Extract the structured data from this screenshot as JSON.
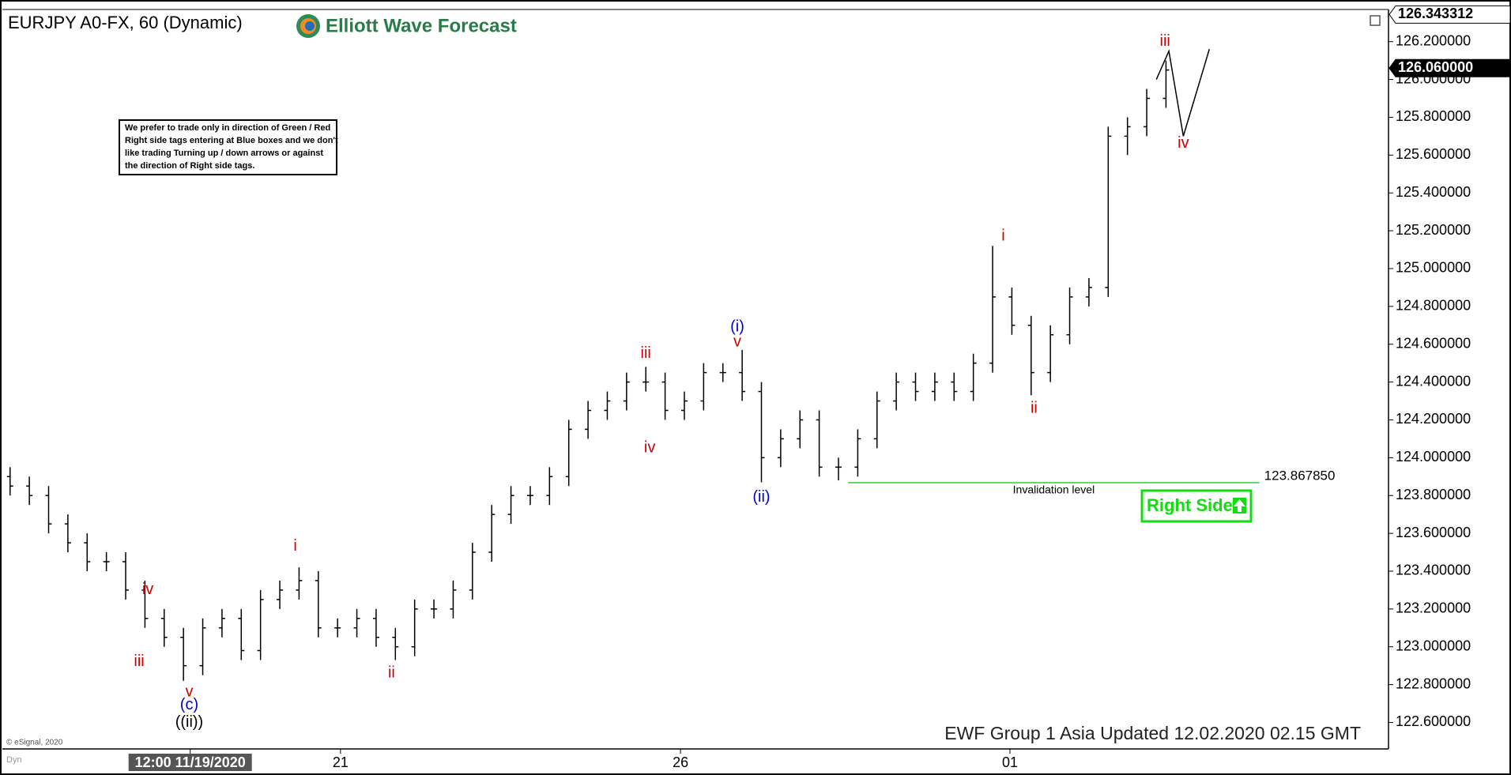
{
  "chart_data": {
    "type": "ohlc",
    "title": "EURJPY A0-FX, 60 (Dynamic)",
    "color": "#000000",
    "xlim": [
      -0.4,
      71.55
    ],
    "ylim": [
      122.46,
      126.37
    ],
    "xticks": [
      {
        "value": 9.35,
        "label": "12:00 11/19/2020"
      },
      {
        "value": 17.15,
        "label": "21"
      },
      {
        "value": 34.8,
        "label": "26"
      },
      {
        "value": 51.9,
        "label": "01"
      }
    ],
    "yticks": [
      {
        "value": 122.6,
        "label": "122.600000"
      },
      {
        "value": 122.8,
        "label": "122.800000"
      },
      {
        "value": 123.0,
        "label": "123.000000"
      },
      {
        "value": 123.2,
        "label": "123.200000"
      },
      {
        "value": 123.4,
        "label": "123.400000"
      },
      {
        "value": 123.6,
        "label": "123.600000"
      },
      {
        "value": 123.8,
        "label": "123.800000"
      },
      {
        "value": 124.0,
        "label": "124.000000"
      },
      {
        "value": 124.2,
        "label": "124.200000"
      },
      {
        "value": 124.4,
        "label": "124.400000"
      },
      {
        "value": 124.6,
        "label": "124.600000"
      },
      {
        "value": 124.8,
        "label": "124.800000"
      },
      {
        "value": 125.0,
        "label": "125.000000"
      },
      {
        "value": 125.2,
        "label": "125.200000"
      },
      {
        "value": 125.4,
        "label": "125.400000"
      },
      {
        "value": 125.6,
        "label": "125.600000"
      },
      {
        "value": 125.8,
        "label": "125.800000"
      },
      {
        "value": 126.0,
        "label": "126.000000"
      },
      {
        "value": 126.2,
        "label": "126.200000"
      }
    ],
    "open": [
      123.9,
      123.85,
      123.8,
      123.65,
      123.55,
      123.45,
      123.45,
      123.3,
      123.15,
      123.05,
      122.9,
      123.1,
      123.15,
      122.98,
      123.25,
      123.3,
      123.35,
      123.1,
      123.1,
      123.15,
      123.05,
      123.0,
      123.2,
      123.2,
      123.3,
      123.5,
      123.7,
      123.8,
      123.8,
      123.9,
      124.15,
      124.25,
      124.3,
      124.4,
      124.4,
      124.25,
      124.3,
      124.45,
      124.45,
      124.35,
      124.0,
      124.1,
      124.2,
      123.95,
      123.95,
      124.1,
      124.3,
      124.4,
      124.35,
      124.4,
      124.35,
      124.5,
      124.85,
      124.7,
      124.45,
      124.65,
      124.85,
      124.9,
      125.7,
      125.75,
      125.9
    ],
    "high": [
      123.95,
      123.9,
      123.85,
      123.7,
      123.6,
      123.5,
      123.5,
      123.35,
      123.2,
      123.1,
      123.15,
      123.2,
      123.2,
      123.3,
      123.35,
      123.42,
      123.4,
      123.15,
      123.2,
      123.2,
      123.1,
      123.25,
      123.25,
      123.35,
      123.55,
      123.75,
      123.85,
      123.85,
      123.95,
      124.2,
      124.3,
      124.35,
      124.45,
      124.48,
      124.45,
      124.35,
      124.5,
      124.5,
      124.57,
      124.4,
      124.15,
      124.25,
      124.25,
      124.0,
      124.15,
      124.35,
      124.45,
      124.45,
      124.45,
      124.45,
      124.55,
      125.12,
      124.9,
      124.75,
      124.7,
      124.9,
      124.95,
      125.75,
      125.8,
      125.95,
      126.1
    ],
    "low": [
      123.8,
      123.75,
      123.6,
      123.5,
      123.4,
      123.4,
      123.25,
      123.1,
      123.0,
      122.82,
      122.85,
      123.05,
      122.93,
      122.93,
      123.2,
      123.25,
      123.05,
      123.05,
      123.05,
      123.0,
      122.93,
      122.95,
      123.15,
      123.15,
      123.25,
      123.45,
      123.65,
      123.75,
      123.75,
      123.85,
      124.1,
      124.2,
      124.25,
      124.35,
      124.2,
      124.2,
      124.25,
      124.4,
      124.3,
      123.87,
      123.95,
      124.05,
      123.9,
      123.88,
      123.9,
      124.05,
      124.25,
      124.3,
      124.3,
      124.3,
      124.3,
      124.45,
      124.65,
      124.33,
      124.4,
      124.6,
      124.8,
      124.85,
      125.6,
      125.7,
      125.85
    ],
    "close": [
      123.85,
      123.8,
      123.65,
      123.55,
      123.45,
      123.45,
      123.3,
      123.15,
      123.05,
      122.9,
      123.1,
      123.15,
      122.98,
      123.25,
      123.3,
      123.35,
      123.1,
      123.1,
      123.15,
      123.05,
      123.0,
      123.2,
      123.2,
      123.3,
      123.5,
      123.7,
      123.8,
      123.8,
      123.9,
      124.15,
      124.25,
      124.3,
      124.4,
      124.4,
      124.25,
      124.3,
      124.45,
      124.45,
      124.35,
      124.0,
      124.1,
      124.2,
      123.95,
      123.95,
      124.1,
      124.3,
      124.4,
      124.35,
      124.4,
      124.35,
      124.5,
      124.85,
      124.7,
      124.45,
      124.65,
      124.85,
      124.9,
      125.7,
      125.75,
      125.9,
      126.05
    ],
    "price_markers": [
      {
        "value": 126.343312,
        "label": "126.343312"
      },
      {
        "value": 126.06,
        "label": "126.060000"
      }
    ],
    "wave_labels": [
      {
        "text": "iv",
        "x": 7.15,
        "y": 123.3,
        "color": "#cc0000"
      },
      {
        "text": "iii",
        "x": 6.7,
        "y": 122.92,
        "color": "#cc0000"
      },
      {
        "text": "v",
        "x": 9.3,
        "y": 122.76,
        "color": "#cc0000"
      },
      {
        "text": "(c)",
        "x": 9.3,
        "y": 122.69,
        "color": "#0000cc"
      },
      {
        "text": "((ii))",
        "x": 9.3,
        "y": 122.6,
        "color": "#000000"
      },
      {
        "text": "i",
        "x": 14.8,
        "y": 123.53,
        "color": "#cc0000"
      },
      {
        "text": "ii",
        "x": 19.8,
        "y": 122.86,
        "color": "#cc0000"
      },
      {
        "text": "iii",
        "x": 33.0,
        "y": 124.55,
        "color": "#cc0000"
      },
      {
        "text": "iv",
        "x": 33.2,
        "y": 124.05,
        "color": "#cc0000"
      },
      {
        "text": "(i)",
        "x": 37.75,
        "y": 124.69,
        "color": "#0000cc"
      },
      {
        "text": "v",
        "x": 37.75,
        "y": 124.61,
        "color": "#cc0000"
      },
      {
        "text": "(ii)",
        "x": 39.0,
        "y": 123.79,
        "color": "#0000cc"
      },
      {
        "text": "i",
        "x": 51.55,
        "y": 125.17,
        "color": "#cc0000"
      },
      {
        "text": "ii",
        "x": 53.15,
        "y": 124.26,
        "color": "#cc0000"
      },
      {
        "text": "iii",
        "x": 59.95,
        "y": 126.2,
        "color": "#cc0000"
      },
      {
        "text": "iv",
        "x": 60.9,
        "y": 125.66,
        "color": "#cc0000"
      }
    ],
    "projection": {
      "x": [
        59.5,
        60.15,
        60.9,
        62.25
      ],
      "y": [
        126.0,
        126.15,
        125.7,
        126.16
      ],
      "color": "#000000"
    },
    "invalidation": {
      "value": 123.86785,
      "label": "123.867850",
      "text": "Invalidation level",
      "x": [
        43.5,
        64.85
      ],
      "color": "#33cc33"
    }
  },
  "header": {
    "logo": "Elliott Wave Forecast"
  },
  "note": {
    "lines": [
      "We prefer to trade only in direction of Green / Red",
      "Right side tags entering at Blue boxes and we don't",
      "like trading Turning up / down arrows or against",
      "the direction of Right side tags."
    ]
  },
  "footer": {
    "update": "EWF Group 1 Asia Updated 12.02.2020 02.15 GMT",
    "copyright": "© eSignal, 2020",
    "mode": "Dyn"
  },
  "tag": {
    "text": "Right Side",
    "color": "#11dd11"
  }
}
